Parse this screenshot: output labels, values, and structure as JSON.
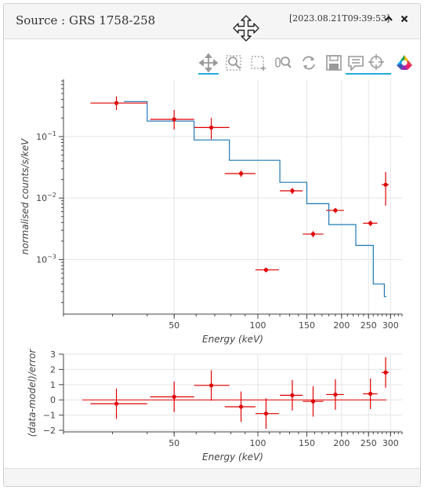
{
  "header": {
    "title": "Source : GRS 1758-258",
    "timestamp": "[2023.08.21T09:39:53]"
  },
  "toolbar": {
    "tools": [
      "pan-icon",
      "box-zoom-icon",
      "box-select-icon",
      "wheel-zoom-icon",
      "reset-icon",
      "save-icon",
      "hover-icon",
      "crosshair-icon",
      "bokeh-logo"
    ]
  },
  "chart_data": [
    {
      "type": "scatter",
      "title": "",
      "xlabel": "Energy (keV)",
      "ylabel": "normalised counts/s/keV",
      "xscale": "log",
      "yscale": "log",
      "xlim": [
        20,
        330
      ],
      "ylim": [
        0.00013,
        0.85
      ],
      "x_ticks": [
        50,
        100,
        150,
        200,
        250,
        300
      ],
      "y_ticks": [
        {
          "value": 0.1,
          "mantissa": "10",
          "exp": "−1"
        },
        {
          "value": 0.01,
          "mantissa": "10",
          "exp": "−2"
        },
        {
          "value": 0.001,
          "mantissa": "10",
          "exp": "−3"
        }
      ],
      "grid": true,
      "data": {
        "x": [
          31,
          50,
          68,
          87,
          107,
          133,
          158,
          190,
          254,
          288
        ],
        "xerr_lo": [
          6,
          9,
          9,
          11,
          9,
          13,
          13,
          14,
          15,
          9
        ],
        "xerr_hi": [
          9,
          9,
          11,
          11,
          12,
          12,
          14,
          14,
          15,
          8
        ],
        "y": [
          0.35,
          0.19,
          0.14,
          0.025,
          0.00068,
          0.0131,
          0.0026,
          0.0063,
          0.0039,
          0.0165
        ],
        "yerr_lo": [
          0.08,
          0.06,
          0.05,
          0.003,
          6e-05,
          0.0015,
          0.0003,
          0.0006,
          0.0004,
          0.009
        ],
        "yerr_hi": [
          0.1,
          0.08,
          0.06,
          0.003,
          6e-05,
          0.0015,
          0.0003,
          0.0006,
          0.0004,
          0.01
        ]
      },
      "model": {
        "x_edges": [
          33,
          40,
          59,
          79,
          120,
          150,
          180,
          225,
          260,
          285
        ],
        "y": [
          0.37,
          0.178,
          0.088,
          0.041,
          0.018,
          0.0081,
          0.0037,
          0.0017,
          0.0004,
          0.00025
        ]
      },
      "colors": {
        "data": "#e00000",
        "model": "#1f77b4"
      }
    },
    {
      "type": "scatter",
      "title": "",
      "xlabel": "Energy (keV)",
      "ylabel": "(data-model)/error",
      "xscale": "log",
      "xlim": [
        20,
        330
      ],
      "ylim": [
        -2.1,
        3.0
      ],
      "x_ticks": [
        50,
        100,
        150,
        200,
        250,
        300
      ],
      "y_ticks": [
        3,
        2,
        1,
        0,
        -1,
        -2
      ],
      "y_tick_labels": [
        "3",
        "2",
        "1",
        "0",
        "−1",
        "−2"
      ],
      "grid": true,
      "data": {
        "x": [
          31,
          50,
          68,
          87,
          107,
          133,
          158,
          190,
          254,
          288
        ],
        "xerr_lo": [
          6,
          9,
          9,
          11,
          9,
          13,
          13,
          14,
          15,
          9
        ],
        "xerr_hi": [
          9,
          9,
          11,
          11,
          12,
          12,
          14,
          14,
          15,
          8
        ],
        "y": [
          -0.25,
          0.2,
          0.95,
          -0.45,
          -0.9,
          0.3,
          -0.1,
          0.35,
          0.4,
          1.8
        ],
        "yerr": [
          1.0,
          1.0,
          1.0,
          1.0,
          1.0,
          1.0,
          1.0,
          1.0,
          1.0,
          1.0
        ]
      },
      "zero_line": {
        "x": [
          20,
          290
        ],
        "y": 0
      }
    }
  ]
}
